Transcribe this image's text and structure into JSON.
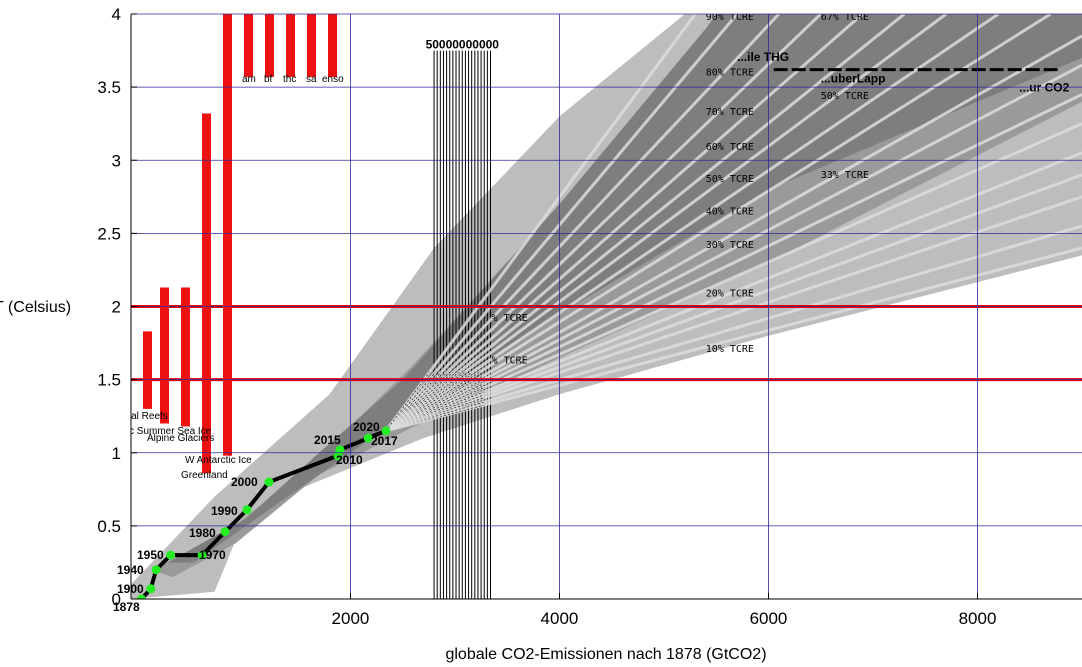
{
  "chart_data": {
    "type": "line",
    "title": "",
    "xlabel": "globale CO2-Emissionen nach 1878 (GtCO2)",
    "ylabel": "T (Celsius)",
    "xlim": [
      -100,
      9000
    ],
    "ylim": [
      0,
      4
    ],
    "x_ticks": [
      {
        "value": 2000,
        "label": "2000"
      },
      {
        "value": 4000,
        "label": "4000"
      },
      {
        "value": 6000,
        "label": "6000"
      },
      {
        "value": 8000,
        "label": "8000"
      }
    ],
    "y_ticks": [
      {
        "value": 0,
        "label": "0"
      },
      {
        "value": 0.5,
        "label": "0.5"
      },
      {
        "value": 1,
        "label": "1"
      },
      {
        "value": 1.5,
        "label": "1.5"
      },
      {
        "value": 2,
        "label": "2"
      },
      {
        "value": 2.5,
        "label": "2.5"
      },
      {
        "value": 3,
        "label": "3"
      },
      {
        "value": 3.5,
        "label": "3.5"
      },
      {
        "value": 4,
        "label": "4"
      }
    ],
    "grid": true,
    "colors": {
      "history": "#000000",
      "points": "#22ee22",
      "threshold": "#ee0000",
      "tipping": "#ee1111",
      "band_outer": "#bdbdbd",
      "band_mid": "#9a9a9a",
      "band_inner": "#7e7e7e",
      "fan": "#dddddd"
    },
    "history": [
      {
        "year": "1878",
        "x": 0,
        "y": 0.0
      },
      {
        "year": "1900",
        "x": 90,
        "y": 0.07
      },
      {
        "year": "1940",
        "x": 140,
        "y": 0.2
      },
      {
        "year": "1950",
        "x": 280,
        "y": 0.3
      },
      {
        "year": "1970",
        "x": 580,
        "y": 0.3
      },
      {
        "year": "1980",
        "x": 800,
        "y": 0.46
      },
      {
        "year": "1990",
        "x": 1010,
        "y": 0.61
      },
      {
        "year": "2000",
        "x": 1220,
        "y": 0.8
      },
      {
        "year": "2010",
        "x": 1880,
        "y": 0.98
      },
      {
        "year": "2015",
        "x": 1900,
        "y": 1.02
      },
      {
        "year": "2017",
        "x": 2170,
        "y": 1.1
      },
      {
        "year": "2020",
        "x": 2340,
        "y": 1.15
      }
    ],
    "thresholds": [
      1.5,
      2.0
    ],
    "tipping_points": [
      {
        "label": "Coral Reefs",
        "low": 1.3,
        "high": 1.83
      },
      {
        "label": "Arctic Summer Sea Ice",
        "low": 1.2,
        "high": 2.13
      },
      {
        "label": "Alpine Glaciers",
        "low": 1.18,
        "high": 2.13
      },
      {
        "label": "W Antarctic Ice",
        "low": 0.86,
        "high": 3.32
      },
      {
        "label": "Greenland",
        "low": 0.98,
        "high": 4.0
      },
      {
        "label": "am",
        "low": 3.57,
        "high": 4.0
      },
      {
        "label": "bf",
        "low": 3.57,
        "high": 4.0
      },
      {
        "label": "thc",
        "low": 3.57,
        "high": 4.0
      },
      {
        "label": "sa",
        "low": 3.57,
        "high": 4.0
      },
      {
        "label": "enso",
        "low": 3.57,
        "high": 4.0
      }
    ],
    "bands": {
      "outer_upper": [
        [
          -100,
          0.1
        ],
        [
          700,
          0.7
        ],
        [
          1800,
          1.4
        ],
        [
          2800,
          2.4
        ],
        [
          4000,
          3.3
        ],
        [
          5200,
          4.0
        ],
        [
          9000,
          4.0
        ]
      ],
      "outer_lower": [
        [
          9000,
          2.35
        ],
        [
          6000,
          1.8
        ],
        [
          4000,
          1.4
        ],
        [
          2700,
          1.1
        ],
        [
          1500,
          0.75
        ],
        [
          900,
          0.4
        ],
        [
          700,
          0.05
        ],
        [
          -100,
          0.0
        ]
      ],
      "mid_upper": [
        [
          100,
          0.2
        ],
        [
          800,
          0.45
        ],
        [
          1600,
          0.9
        ],
        [
          2600,
          1.6
        ],
        [
          4000,
          2.7
        ],
        [
          5500,
          3.7
        ],
        [
          6100,
          4.0
        ],
        [
          9000,
          4.0
        ],
        [
          9000,
          3.4
        ]
      ],
      "mid_lower": [
        [
          6000,
          2.3
        ],
        [
          4000,
          1.65
        ],
        [
          2800,
          1.25
        ],
        [
          1700,
          0.85
        ],
        [
          900,
          0.38
        ],
        [
          300,
          0.15
        ]
      ],
      "inner_upper": [
        [
          250,
          0.25
        ],
        [
          1000,
          0.55
        ],
        [
          1700,
          1.0
        ],
        [
          2500,
          1.5
        ],
        [
          4000,
          2.7
        ],
        [
          5400,
          3.9
        ],
        [
          5500,
          4.0
        ],
        [
          9000,
          4.0
        ],
        [
          9000,
          3.7
        ]
      ],
      "inner_lower": [
        [
          6000,
          2.8
        ],
        [
          4000,
          1.95
        ],
        [
          2900,
          1.45
        ],
        [
          1900,
          0.95
        ],
        [
          1000,
          0.5
        ],
        [
          500,
          0.25
        ]
      ]
    },
    "fan_origin": {
      "x": 2340,
      "y": 1.15
    },
    "fan_endpoints": [
      [
        9000,
        2.4
      ],
      [
        9000,
        2.55
      ],
      [
        9000,
        2.75
      ],
      [
        9000,
        2.9
      ],
      [
        9000,
        3.05
      ],
      [
        9000,
        3.25
      ],
      [
        9000,
        3.45
      ],
      [
        9000,
        3.65
      ],
      [
        9000,
        3.85
      ],
      [
        8700,
        4.0
      ],
      [
        8200,
        4.0
      ],
      [
        7700,
        4.0
      ],
      [
        7300,
        4.0
      ],
      [
        6900,
        4.0
      ],
      [
        6500,
        4.0
      ],
      [
        6100,
        4.0
      ],
      [
        5700,
        4.0
      ],
      [
        5300,
        4.0
      ]
    ],
    "tcre_labels": [
      {
        "text": "90% TCRE",
        "x": 5400,
        "y": 3.96
      },
      {
        "text": "67% TCRE",
        "x": 6500,
        "y": 3.96
      },
      {
        "text": "80% TCRE",
        "x": 5400,
        "y": 3.58
      },
      {
        "text": "50% TCRE",
        "x": 6500,
        "y": 3.42
      },
      {
        "text": "70% TCRE",
        "x": 5400,
        "y": 3.31
      },
      {
        "text": "60% TCRE",
        "x": 5400,
        "y": 3.07
      },
      {
        "text": "33% TCRE",
        "x": 6500,
        "y": 2.88
      },
      {
        "text": "50% TCRE",
        "x": 5400,
        "y": 2.85
      },
      {
        "text": "40% TCRE",
        "x": 5400,
        "y": 2.63
      },
      {
        "text": "30% TCRE",
        "x": 5400,
        "y": 2.4
      },
      {
        "text": "20% TCRE",
        "x": 5400,
        "y": 2.07
      },
      {
        "text": "10% TCRE",
        "x": 5400,
        "y": 1.69
      },
      {
        "text": "% TCRE",
        "x": 3350,
        "y": 1.9
      },
      {
        "text": "% TCRE",
        "x": 3350,
        "y": 1.61
      }
    ],
    "budget_block": {
      "x_start": 2800,
      "x_end": 3340,
      "y_top": 3.75,
      "label": "50000000000"
    },
    "overlays": [
      {
        "text": "...ile THG",
        "x": 5700,
        "y": 3.68
      },
      {
        "text": "...uberLapp",
        "x": 6500,
        "y": 3.53
      },
      {
        "text": "...ur CO2",
        "x": 8400,
        "y": 3.47
      }
    ],
    "dashed_line": {
      "x_start": 6050,
      "x_end": 8800,
      "y": 3.62
    }
  }
}
